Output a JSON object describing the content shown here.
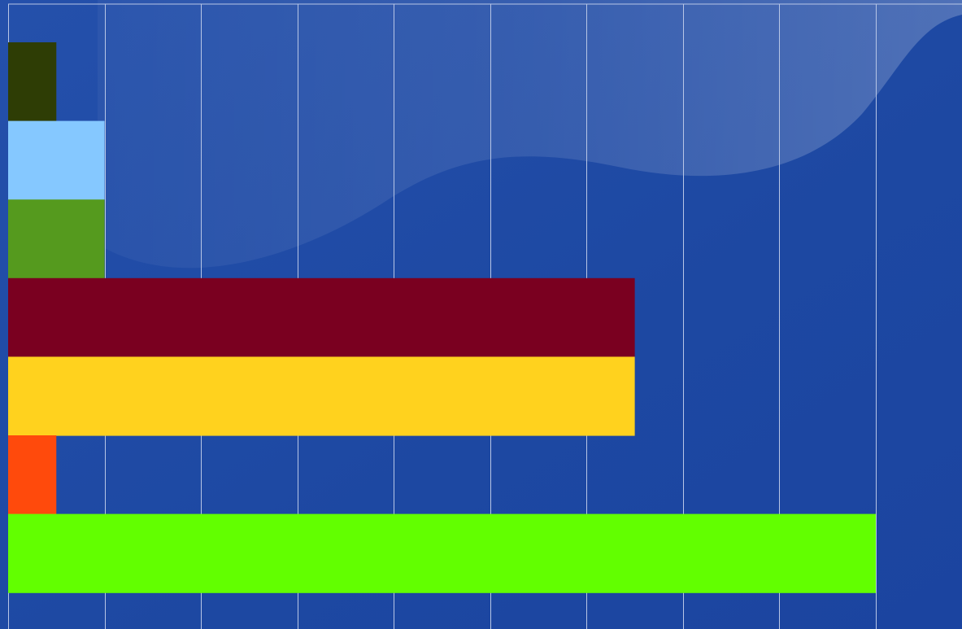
{
  "chart_data": {
    "type": "bar",
    "orientation": "horizontal",
    "title": "",
    "xlabel": "",
    "ylabel": "",
    "xlim": [
      0,
      9
    ],
    "grid": true,
    "tick_labels_visible": false,
    "background": {
      "base_color": "#1e4aa3",
      "highlight_color": "#5a82d0",
      "style": "wave"
    },
    "bars": [
      {
        "value": 0.5,
        "color": "#2e3d05"
      },
      {
        "value": 1.0,
        "color": "#85c8ff"
      },
      {
        "value": 1.0,
        "color": "#559a1e"
      },
      {
        "value": 6.5,
        "color": "#7a0020"
      },
      {
        "value": 6.5,
        "color": "#ffd21e"
      },
      {
        "value": 0.5,
        "color": "#ff4a0c"
      },
      {
        "value": 9.0,
        "color": "#62ff00"
      }
    ]
  }
}
